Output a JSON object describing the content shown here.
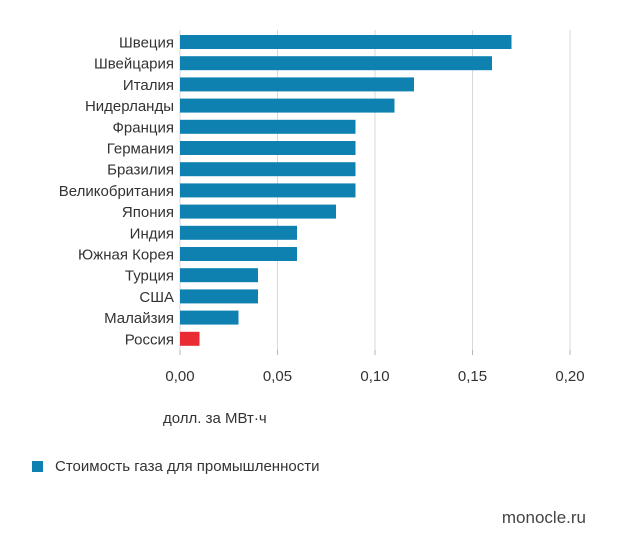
{
  "chart_data": {
    "type": "bar",
    "orientation": "horizontal",
    "categories": [
      "Швеция",
      "Швейцария",
      "Италия",
      "Нидерланды",
      "Франция",
      "Германия",
      "Бразилия",
      "Великобритания",
      "Япония",
      "Индия",
      "Южная Корея",
      "Турция",
      "США",
      "Малайзия",
      "Россия"
    ],
    "series": [
      {
        "name": "Стоимость газа для промышленности",
        "values": [
          0.17,
          0.16,
          0.12,
          0.11,
          0.09,
          0.09,
          0.09,
          0.09,
          0.08,
          0.06,
          0.06,
          0.04,
          0.04,
          0.03,
          0.01
        ]
      }
    ],
    "highlight": {
      "category": "Россия",
      "color": "#ea2b33"
    },
    "xlim": [
      0,
      0.2
    ],
    "xticks": [
      0,
      0.05,
      0.1,
      0.15,
      0.2
    ],
    "xtick_labels": [
      "0,00",
      "0,05",
      "0,10",
      "0,15",
      "0,20"
    ],
    "xlabel": "долл. за МВт·ч",
    "grid": "vertical",
    "legend_position": "bottom-left",
    "colors": {
      "bar": "#0f81b0",
      "highlight": "#ea2b33",
      "grid": "#d9d9d9"
    }
  },
  "source": "monocle.ru"
}
